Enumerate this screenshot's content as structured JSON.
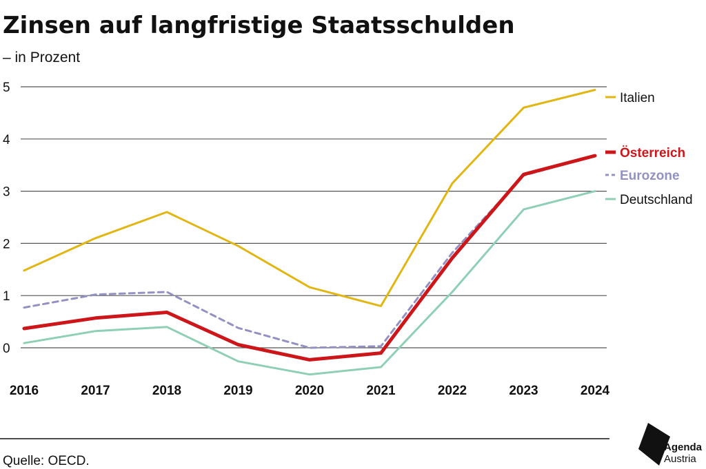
{
  "chart_data": {
    "type": "line",
    "title": "Zinsen auf langfristige Staatsschulden",
    "subtitle": "– in Prozent",
    "categories": [
      "2016",
      "2017",
      "2018",
      "2019",
      "2020",
      "2021",
      "2022",
      "2023",
      "2024"
    ],
    "ylim": [
      -0.6,
      5
    ],
    "yticks": [
      0,
      1,
      2,
      3,
      4,
      5
    ],
    "grid": true,
    "legend_position": "right",
    "series": [
      {
        "name": "Italien",
        "color": "#e2b612",
        "style": "solid",
        "weight": "normal",
        "values": [
          1.48,
          2.1,
          2.6,
          1.95,
          1.16,
          0.8,
          3.15,
          4.6,
          4.94
        ]
      },
      {
        "name": "Österreich",
        "color": "#cc1619",
        "style": "solid",
        "weight": "bold",
        "values": [
          0.37,
          0.57,
          0.68,
          0.06,
          -0.23,
          -0.1,
          1.72,
          3.32,
          3.68
        ]
      },
      {
        "name": "Eurozone",
        "color": "#9391c2",
        "style": "dashed",
        "weight": "bold",
        "values": [
          0.77,
          1.02,
          1.07,
          0.38,
          0.0,
          0.03,
          1.82,
          3.3,
          3.68
        ]
      },
      {
        "name": "Deutschland",
        "color": "#8ecfb6",
        "style": "solid",
        "weight": "normal",
        "values": [
          0.09,
          0.32,
          0.4,
          -0.26,
          -0.51,
          -0.37,
          1.07,
          2.65,
          3.0
        ]
      }
    ]
  },
  "source": "Quelle: OECD.",
  "brand": {
    "line1": "Agenda",
    "line2": "Austria"
  }
}
